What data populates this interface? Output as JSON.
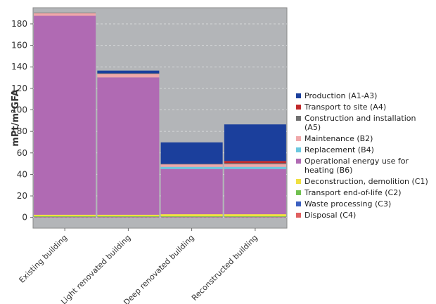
{
  "chart_data": {
    "type": "bar",
    "stacked": true,
    "ylabel": "mPt/m²GFA",
    "ylim": [
      -10,
      195
    ],
    "yticks": [
      0,
      20,
      40,
      60,
      80,
      100,
      120,
      140,
      160,
      180
    ],
    "grid": true,
    "legend_position": "right",
    "categories": [
      "Existing building",
      "Light renovated building",
      "Deep renovated building",
      "Reconstructed building"
    ],
    "series": [
      {
        "name": "Production (A1-A3)",
        "color": "#1b3f9c",
        "values": [
          0,
          2.5,
          20,
          34
        ]
      },
      {
        "name": "Transport to site (A4)",
        "color": "#c0282a",
        "values": [
          0,
          0,
          0,
          2
        ]
      },
      {
        "name": "Construction and installation (A5)",
        "color": "#707070",
        "values": [
          0.5,
          0.3,
          0.3,
          1
        ]
      },
      {
        "name": "Maintenance (B2)",
        "color": "#f0a8aa",
        "values": [
          2.5,
          3.5,
          2.5,
          2.5
        ]
      },
      {
        "name": "Replacement (B4)",
        "color": "#6ac8e0",
        "values": [
          0,
          0,
          2,
          2
        ]
      },
      {
        "name": "Operational energy use for heating (B6)",
        "color": "#b06ab3",
        "values": [
          185,
          127.7,
          42,
          42
        ]
      },
      {
        "name": "Deconstruction, demolition (C1)",
        "color": "#f0e040",
        "values": [
          1.5,
          1.5,
          2,
          2
        ]
      },
      {
        "name": "Transport end-of-life (C2)",
        "color": "#70c050",
        "values": [
          0.2,
          0.2,
          0.2,
          0.2
        ]
      },
      {
        "name": "Waste processing (C3)",
        "color": "#3a5fc0",
        "values": [
          0.3,
          0.3,
          0.3,
          0.3
        ]
      },
      {
        "name": "Disposal (C4)",
        "color": "#e06060",
        "values": [
          0.5,
          0.5,
          0.5,
          0.5
        ]
      }
    ]
  }
}
